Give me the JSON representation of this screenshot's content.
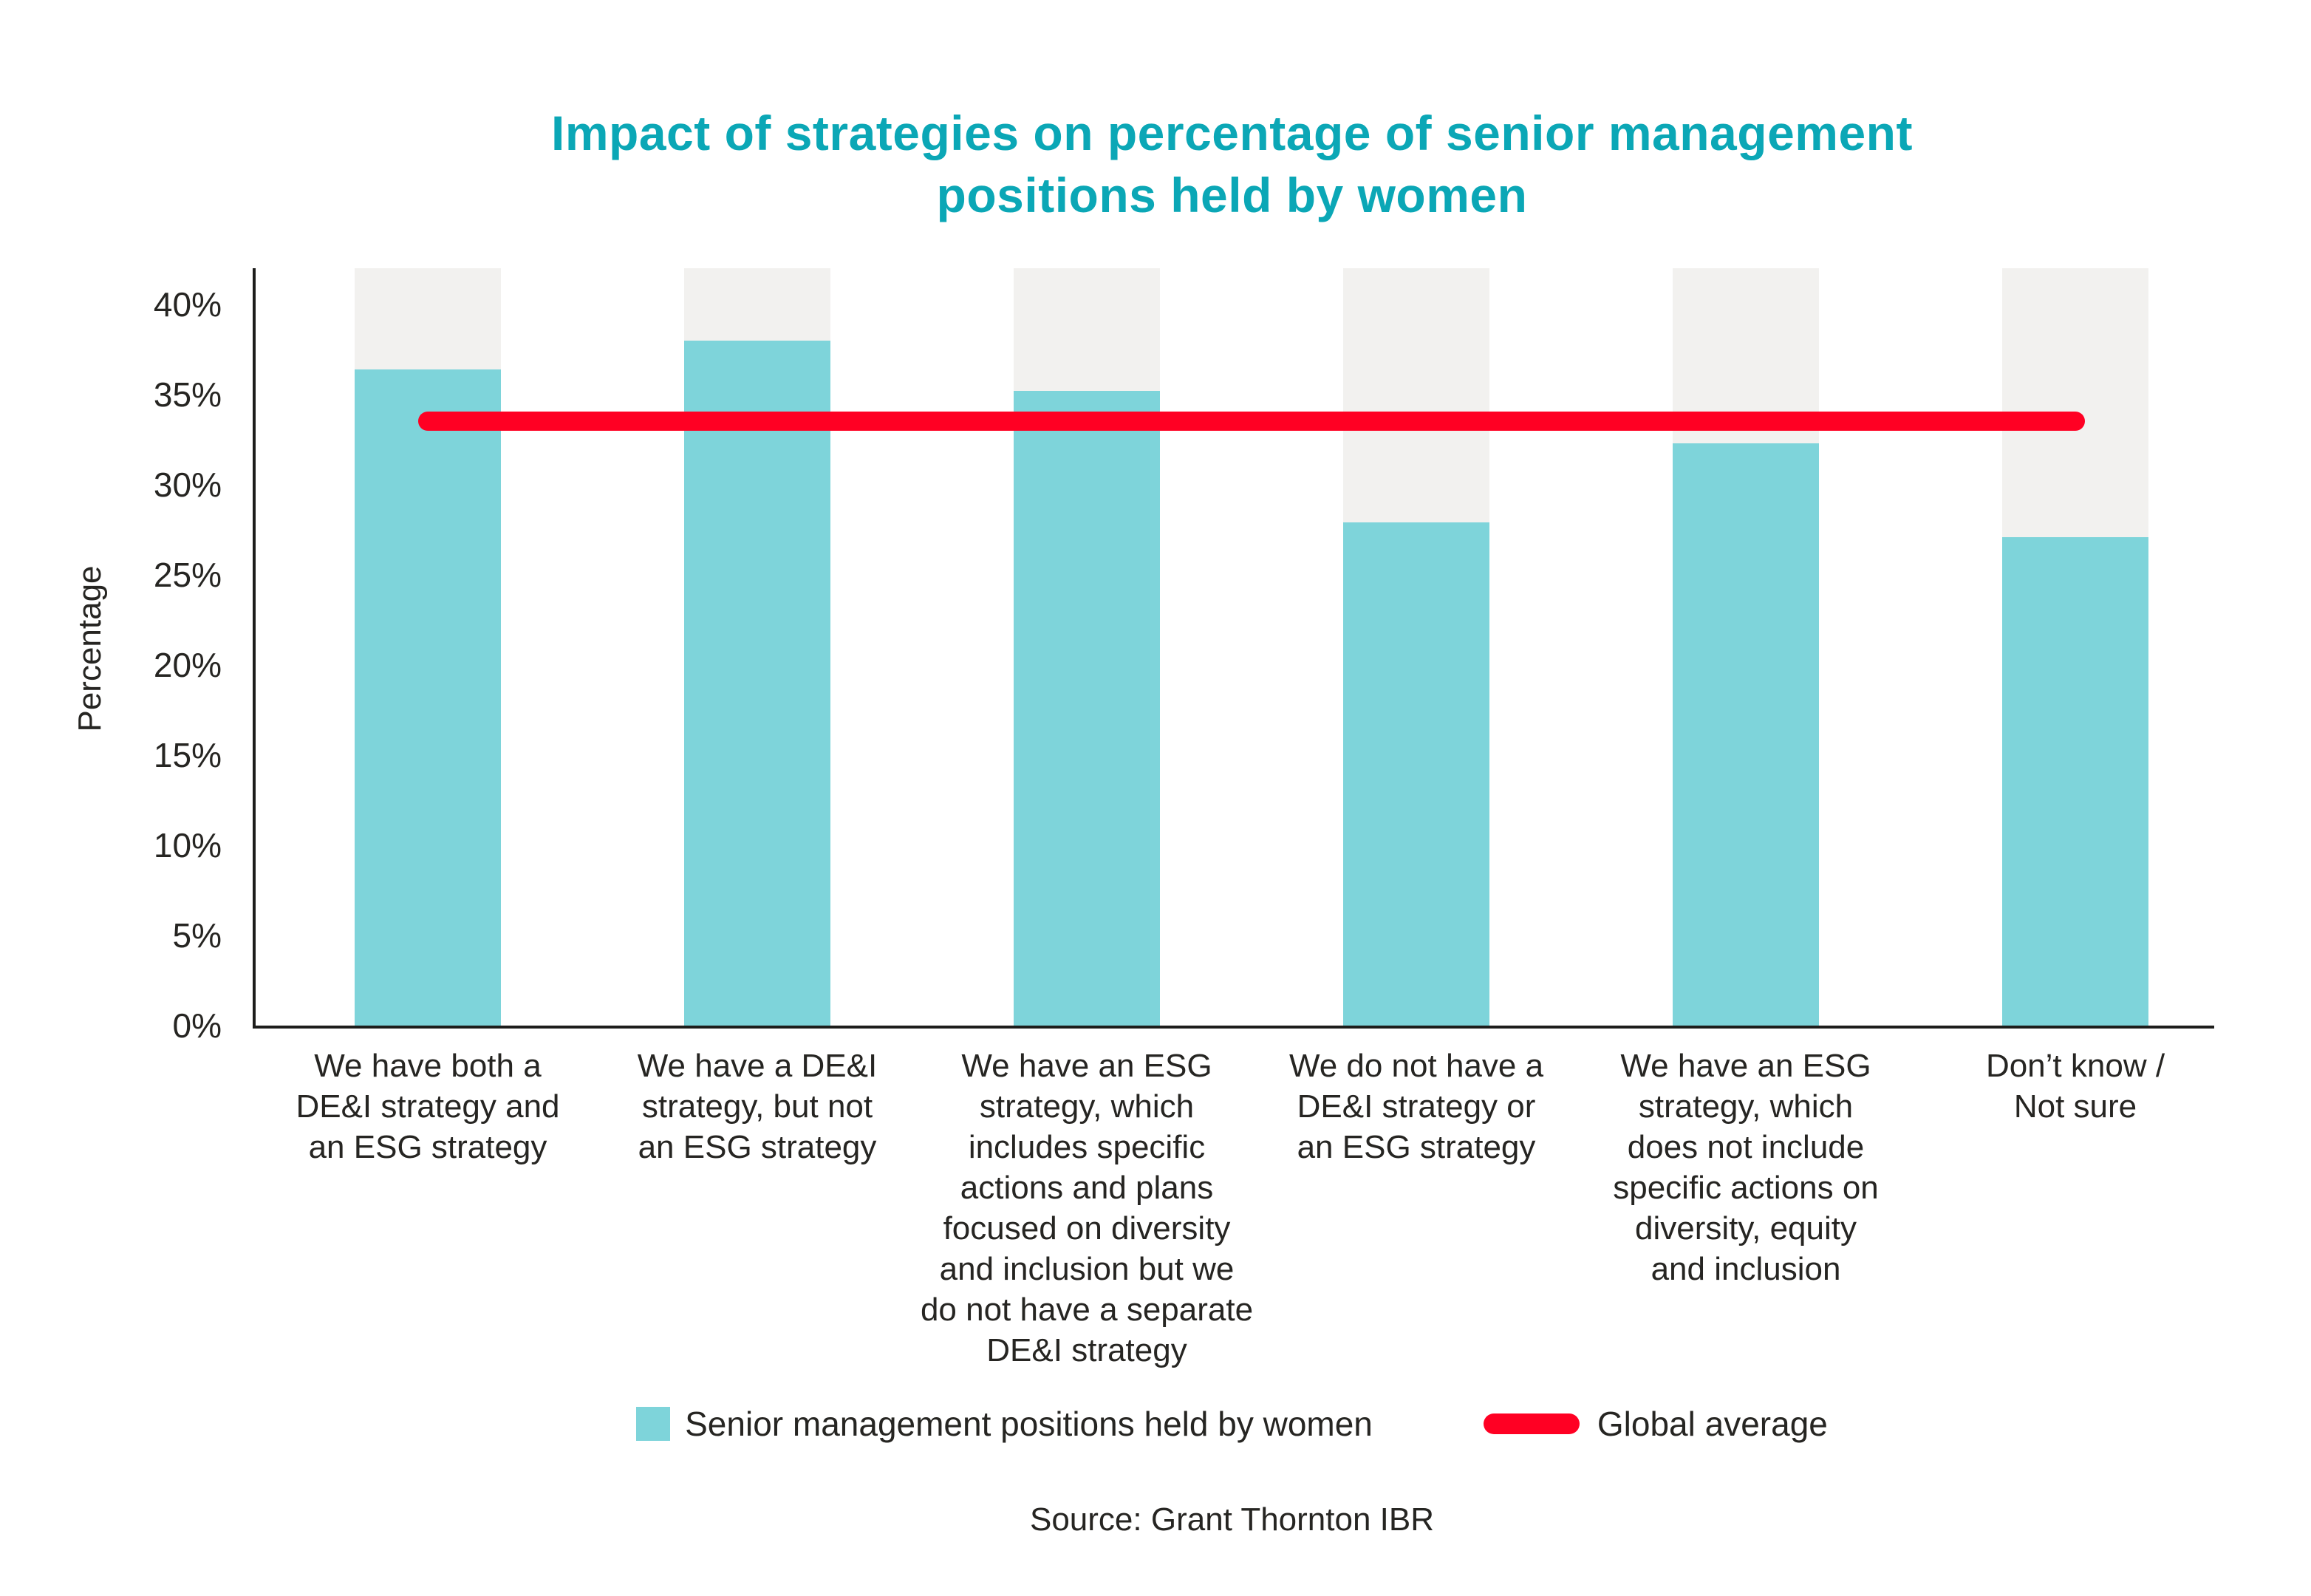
{
  "title": {
    "line1": "Impact of strategies on percentage of senior management",
    "line2": "positions held by women"
  },
  "y_axis": {
    "label": "Percentage",
    "ticks": [
      {
        "label": "0%",
        "value": 0
      },
      {
        "label": "5%",
        "value": 5
      },
      {
        "label": "10%",
        "value": 10
      },
      {
        "label": "15%",
        "value": 15
      },
      {
        "label": "20%",
        "value": 20
      },
      {
        "label": "25%",
        "value": 25
      },
      {
        "label": "30%",
        "value": 30
      },
      {
        "label": "35%",
        "value": 35
      },
      {
        "label": "40%",
        "value": 40
      }
    ]
  },
  "legend": {
    "bars_label": "Senior management positions held by women",
    "average_label": "Global average"
  },
  "source": "Source: Grant Thornton IBR",
  "colors": {
    "bar_teal": "#7ed4da",
    "bar_background": "#f2f1ef",
    "average_line": "#ff0023",
    "title_teal": "#0ba7b6",
    "text": "#262522",
    "axis": "#1d1d1b"
  },
  "chart_data": {
    "type": "bar",
    "title": "Impact of strategies on percentage of senior management positions held by women",
    "categories": [
      "We have both a\nDE&I strategy and\nan ESG strategy",
      "We have a DE&I\nstrategy, but not\nan ESG strategy",
      "We have an ESG\nstrategy, which\nincludes specific\nactions and plans\nfocused on diversity\nand inclusion but we\ndo not have a separate\nDE&I strategy",
      "We do not have a\nDE&I strategy or\nan ESG strategy",
      "We have an ESG\nstrategy, which\ndoes not include\nspecific actions on\ndiversity, equity\nand inclusion",
      "Don’t know /\nNot sure"
    ],
    "series": [
      {
        "name": "Senior management positions held by women",
        "values": [
          36.4,
          38.0,
          35.2,
          27.9,
          32.3,
          27.1
        ]
      }
    ],
    "global_average": 33.5,
    "xlabel": "",
    "ylabel": "Percentage",
    "ylim": [
      0,
      42
    ],
    "background_bar_value": 42,
    "grid": false,
    "legend_position": "bottom"
  }
}
